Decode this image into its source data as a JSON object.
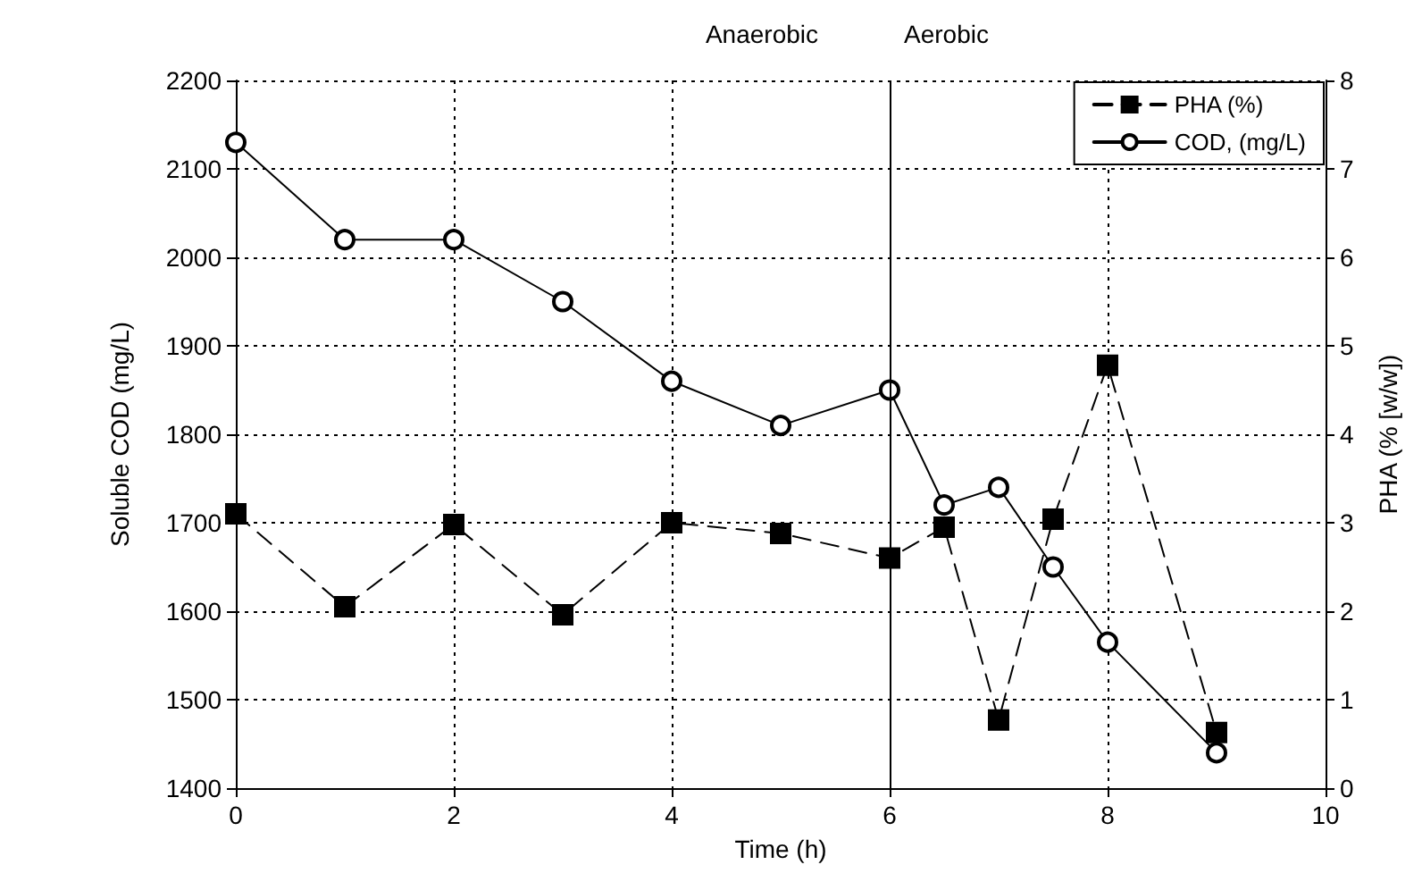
{
  "chart_data": {
    "type": "line",
    "xlabel": "Time (h)",
    "ylabel": "Soluble COD (mg/L)",
    "y2label": "PHA (% [w/w])",
    "x": [
      0,
      1,
      2,
      3,
      4,
      5,
      6,
      6.5,
      7,
      7.5,
      8,
      9
    ],
    "series": [
      {
        "name": "PHA (%)",
        "color": "#000000",
        "axis": "y2",
        "marker": "square",
        "line_style": "dashed",
        "values": [
          3.1,
          2.05,
          2.98,
          1.96,
          3.0,
          2.88,
          2.6,
          2.95,
          0.77,
          3.04,
          4.78,
          0.63
        ]
      },
      {
        "name": "COD, (mg/L)",
        "color": "#000000",
        "marker": "circle",
        "line_style": "solid",
        "values": [
          2130,
          2020,
          2020,
          1950,
          1860,
          1810,
          1850,
          1720,
          1740,
          1650,
          1565,
          1440
        ]
      }
    ],
    "xlim": [
      0,
      10
    ],
    "xticks": [
      0,
      2,
      4,
      6,
      8,
      10
    ],
    "ylim": [
      1400,
      2200
    ],
    "yticks": [
      1400,
      1500,
      1600,
      1700,
      1800,
      1900,
      2000,
      2100,
      2200
    ],
    "y2lim": [
      0,
      8
    ],
    "y2ticks": [
      0,
      1,
      2,
      3,
      4,
      5,
      6,
      7,
      8
    ],
    "ref_lines": [
      {
        "axis": "x",
        "value": 6,
        "color": "#000000",
        "line_style": "solid"
      }
    ],
    "annotations": [
      "Anaerobic",
      "Aerobic"
    ],
    "grid": true,
    "legend": "top right"
  }
}
